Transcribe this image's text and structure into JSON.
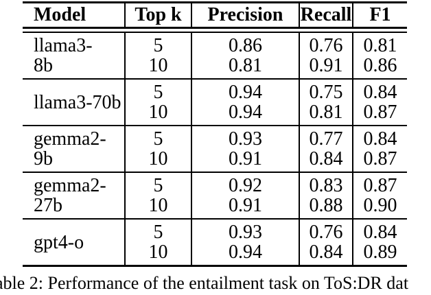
{
  "colors": {
    "background": "#ffffff",
    "text": "#000000",
    "rules": "#000000"
  },
  "table": {
    "headers": [
      "Model",
      "Top k",
      "Precision",
      "Recall",
      "F1"
    ],
    "rows": [
      {
        "model": [
          "llama3-",
          "8b"
        ],
        "topk": [
          "5",
          "10"
        ],
        "precision": [
          "0.86",
          "0.81"
        ],
        "recall": [
          "0.76",
          "0.91"
        ],
        "f1": [
          "0.81",
          "0.86"
        ]
      },
      {
        "model": [
          "llama3-70b"
        ],
        "topk": [
          "5",
          "10"
        ],
        "precision": [
          "0.94",
          "0.94"
        ],
        "recall": [
          "0.75",
          "0.81"
        ],
        "f1": [
          "0.84",
          "0.87"
        ]
      },
      {
        "model": [
          "gemma2-9b"
        ],
        "topk": [
          "5",
          "10"
        ],
        "precision": [
          "0.93",
          "0.91"
        ],
        "recall": [
          "0.77",
          "0.84"
        ],
        "f1": [
          "0.84",
          "0.87"
        ]
      },
      {
        "model": [
          "gemma2-",
          "27b"
        ],
        "topk": [
          "5",
          "10"
        ],
        "precision": [
          "0.92",
          "0.91"
        ],
        "recall": [
          "0.83",
          "0.88"
        ],
        "f1": [
          "0.87",
          "0.90"
        ]
      },
      {
        "model": [
          "gpt4-o"
        ],
        "topk": [
          "5",
          "10"
        ],
        "precision": [
          "0.93",
          "0.94"
        ],
        "recall": [
          "0.76",
          "0.84"
        ],
        "f1": [
          "0.84",
          "0.89"
        ]
      }
    ]
  },
  "caption": {
    "visible_text": "able 2: Performance of the entailment task on ToS:DR dat"
  }
}
